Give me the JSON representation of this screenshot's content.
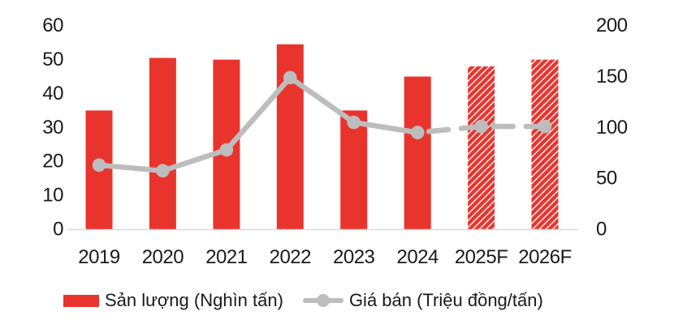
{
  "chart_data": {
    "type": "combo-bar-line",
    "title": "",
    "categories": [
      "2019",
      "2020",
      "2021",
      "2022",
      "2023",
      "2024",
      "2025F",
      "2026F"
    ],
    "forecast_categories": [
      "2025F",
      "2026F"
    ],
    "series": [
      {
        "name": "Sản lượng (Nghìn tấn)",
        "type": "bar",
        "axis": "left",
        "values": [
          35,
          50.5,
          50,
          54.5,
          35,
          45,
          48,
          50
        ],
        "hatched_from_index": 6,
        "color": "#e9342d"
      },
      {
        "name": "Giá bán (Triệu đồng/tấn)",
        "type": "line",
        "axis": "right",
        "values": [
          63,
          57.5,
          78,
          149,
          105,
          95,
          101,
          101
        ],
        "dashed_from_index": 5,
        "color": "#bdbdbd"
      }
    ],
    "left_axis": {
      "min": 0,
      "max": 60,
      "step": 10,
      "ticks": [
        0,
        10,
        20,
        30,
        40,
        50,
        60
      ]
    },
    "right_axis": {
      "min": 0,
      "max": 200,
      "step": 50,
      "ticks": [
        0,
        50,
        100,
        150,
        200
      ]
    },
    "grid": false,
    "legend_position": "bottom",
    "background_color": "#ffffff",
    "axis_line_color": "#d9d9d9",
    "text_color": "#1a1a1a"
  }
}
